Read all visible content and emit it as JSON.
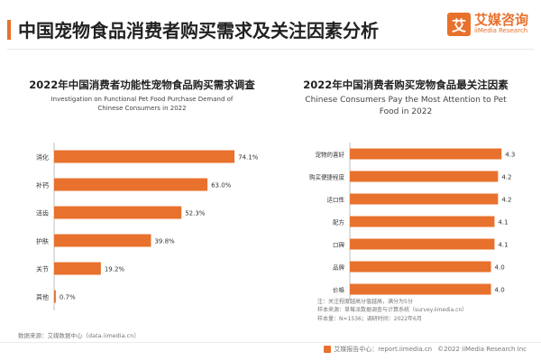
{
  "header": {
    "title": "中国宠物食品消费者购买需求及关注因素分析",
    "logo_mark": "艾",
    "logo_cn": "艾媒咨询",
    "logo_en": "iiMedia Research"
  },
  "colors": {
    "bar": "#e8712d",
    "accent": "#e8712d",
    "label": "#333333"
  },
  "chart_data": [
    {
      "type": "bar",
      "orientation": "horizontal",
      "title": "2022年中国消费者功能性宠物食品购买需求调查",
      "subtitle_lines": [
        "Investigation on Functional Pet Food Purchase Demand of",
        "Chinese Consumers in 2022"
      ],
      "categories": [
        "消化",
        "补钙",
        "洁齿",
        "护肤",
        "关节",
        "其他"
      ],
      "values": [
        74.1,
        63.0,
        52.3,
        39.8,
        19.2,
        0.7
      ],
      "value_labels": [
        "74.1%",
        "63.0%",
        "52.3%",
        "39.8%",
        "19.2%",
        "0.7%"
      ],
      "unit": "%",
      "xlim": [
        0,
        80
      ],
      "grid": false,
      "legend": "none"
    },
    {
      "type": "bar",
      "orientation": "horizontal",
      "title": "2022年中国消费者购买宠物食品最关注因素",
      "subtitle_lines": [
        "Chinese Consumers Pay the Most Attention to Pet",
        "Food in 2022"
      ],
      "categories": [
        "宠物的喜好",
        "购买便捷程度",
        "适口性",
        "配方",
        "口碑",
        "品牌",
        "价格"
      ],
      "values": [
        4.3,
        4.2,
        4.2,
        4.1,
        4.1,
        4.0,
        4.0
      ],
      "value_labels": [
        "4.3",
        "4.2",
        "4.2",
        "4.1",
        "4.1",
        "4.0",
        "4.0"
      ],
      "xlim": [
        0,
        4.6
      ],
      "grid": false,
      "legend": "none"
    }
  ],
  "left_source": "数据来源：艾媒数据中心（data.iimedia.cn）",
  "right_notes": [
    "注：关注程度越高分值越高，满分为5分",
    "样本来源：草莓派数据调查与计算系统（survey.iimedia.cn）",
    "样本量：N=1536；调研时间：2022年6月"
  ],
  "footer": {
    "site": "艾媒报告中心：report.iimedia.cn",
    "copyright": "©2022  iiMedia Research  Inc"
  }
}
